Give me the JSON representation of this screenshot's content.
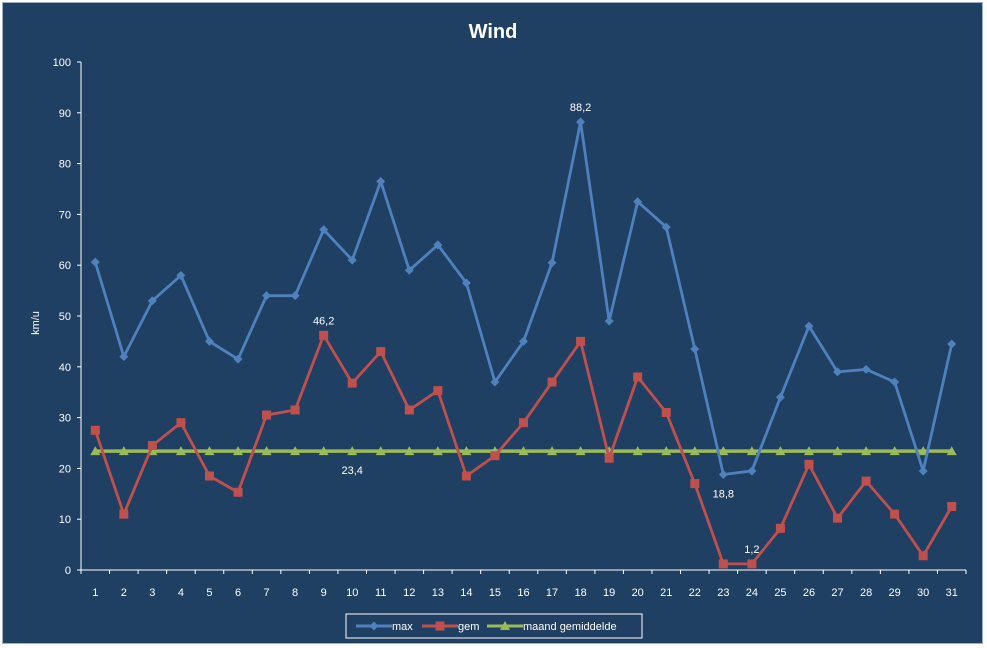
{
  "chart_data": {
    "type": "line",
    "title": "Wind",
    "xlabel": "",
    "ylabel": "km/u",
    "ylim": [
      0,
      100
    ],
    "yticks": [
      0,
      10,
      20,
      30,
      40,
      50,
      60,
      70,
      80,
      90,
      100
    ],
    "grid": false,
    "legend_position": "bottom",
    "x": [
      1,
      2,
      3,
      4,
      5,
      6,
      7,
      8,
      9,
      10,
      11,
      12,
      13,
      14,
      15,
      16,
      17,
      18,
      19,
      20,
      21,
      22,
      23,
      24,
      25,
      26,
      27,
      28,
      29,
      30,
      31
    ],
    "series": [
      {
        "name": "max",
        "color": "#4f81bd",
        "marker": "diamond",
        "values": [
          60.6,
          42,
          53,
          58,
          45,
          41.5,
          54,
          54,
          67,
          61,
          76.5,
          59,
          64,
          56.5,
          37,
          45,
          60.5,
          88.2,
          49,
          72.5,
          67.5,
          43.5,
          18.8,
          19.5,
          34,
          48,
          39,
          39.5,
          37,
          19.5,
          44.5
        ]
      },
      {
        "name": "gem",
        "color": "#c0504d",
        "marker": "square",
        "values": [
          27.5,
          11,
          24.5,
          29,
          18.5,
          15.3,
          30.5,
          31.5,
          46.2,
          36.8,
          43,
          31.5,
          35.3,
          18.5,
          22.5,
          29,
          37,
          45,
          22,
          38,
          31,
          17,
          1.2,
          1.2,
          8.2,
          20.8,
          10.2,
          17.5,
          11,
          2.8,
          12.5
        ]
      },
      {
        "name": "maand gemiddelde",
        "color": "#9bbb59",
        "marker": "triangle",
        "values": [
          23.4,
          23.4,
          23.4,
          23.4,
          23.4,
          23.4,
          23.4,
          23.4,
          23.4,
          23.4,
          23.4,
          23.4,
          23.4,
          23.4,
          23.4,
          23.4,
          23.4,
          23.4,
          23.4,
          23.4,
          23.4,
          23.4,
          23.4,
          23.4,
          23.4,
          23.4,
          23.4,
          23.4,
          23.4,
          23.4,
          23.4
        ]
      }
    ],
    "annotations": [
      {
        "series": 0,
        "index": 17,
        "text": "88,2",
        "pos": "above"
      },
      {
        "series": 0,
        "index": 22,
        "text": "18,8",
        "pos": "below"
      },
      {
        "series": 1,
        "index": 8,
        "text": "46,2",
        "pos": "above"
      },
      {
        "series": 1,
        "index": 23,
        "text": "1,2",
        "pos": "above"
      },
      {
        "series": 2,
        "index": 9,
        "text": "23,4",
        "pos": "below"
      }
    ]
  }
}
